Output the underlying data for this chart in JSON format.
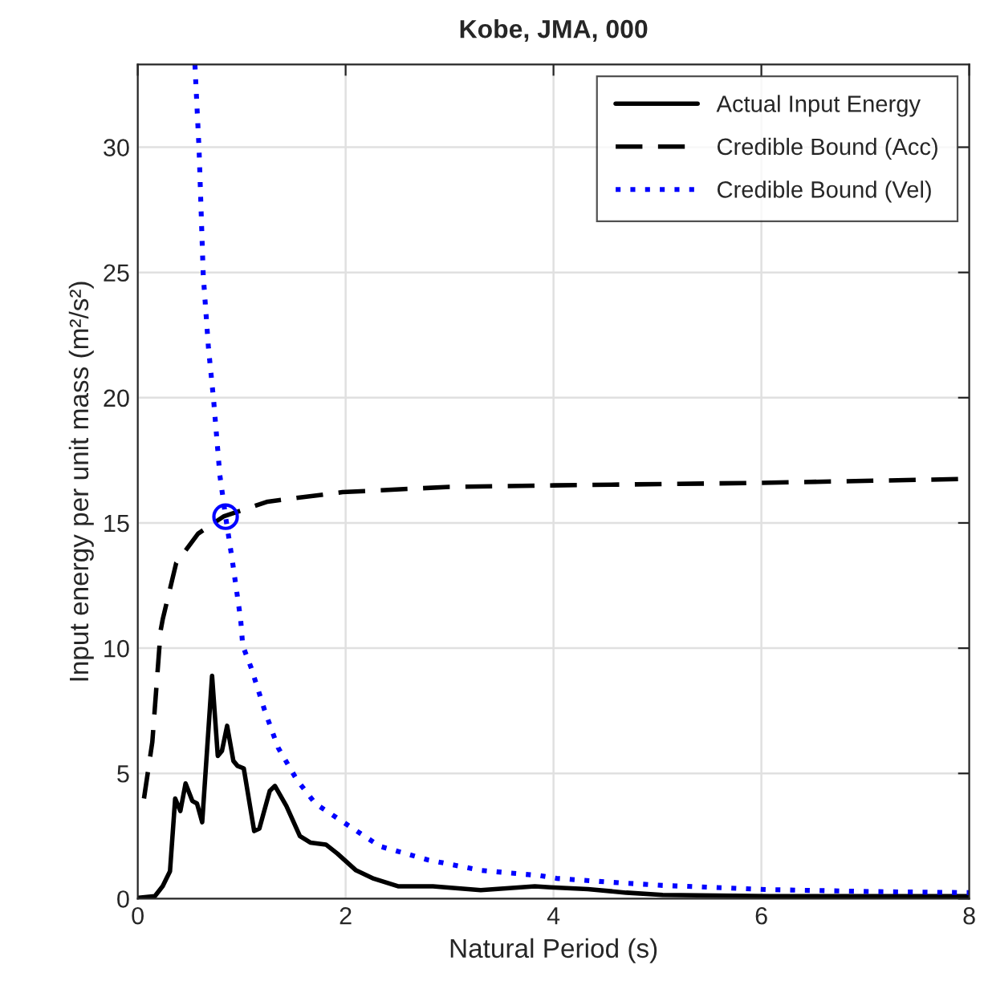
{
  "chart_data": {
    "type": "line",
    "title": "Kobe, JMA, 000",
    "xlabel": "Natural Period (s)",
    "ylabel": "Input energy per unit mass (m²/s²)",
    "xlim": [
      0,
      8
    ],
    "ylim": [
      0,
      33.3
    ],
    "xticks": [
      0,
      2,
      4,
      6,
      8
    ],
    "yticks": [
      0,
      5,
      10,
      15,
      20,
      25,
      30
    ],
    "grid": true,
    "legend": "top right",
    "series": [
      {
        "name": "Actual Input Energy",
        "color": "#000000",
        "line_style": "solid",
        "x": [
          0.01,
          0.165,
          0.24,
          0.31,
          0.36,
          0.41,
          0.46,
          0.525,
          0.57,
          0.62,
          0.715,
          0.77,
          0.81,
          0.86,
          0.92,
          0.96,
          1.02,
          1.12,
          1.17,
          1.27,
          1.32,
          1.43,
          1.56,
          1.66,
          1.81,
          1.92,
          2.1,
          2.27,
          2.51,
          2.84,
          3.3,
          3.82,
          3.97,
          4.33,
          4.7,
          5.05,
          6.08,
          8.0
        ],
        "values": [
          0.04,
          0.1,
          0.5,
          1.09,
          4.0,
          3.5,
          4.6,
          3.9,
          3.8,
          3.05,
          8.9,
          5.7,
          5.9,
          6.9,
          5.5,
          5.3,
          5.2,
          2.7,
          2.8,
          4.3,
          4.5,
          3.7,
          2.5,
          2.24,
          2.16,
          1.8,
          1.13,
          0.8,
          0.49,
          0.49,
          0.34,
          0.49,
          0.45,
          0.38,
          0.24,
          0.15,
          0.1,
          0.1
        ]
      },
      {
        "name": "Credible Bound (Acc)",
        "color": "#000000",
        "line_style": "dashed",
        "x": [
          0.06,
          0.14,
          0.22,
          0.24,
          0.37,
          0.58,
          0.83,
          1.25,
          1.97,
          3.0,
          4.0,
          6.0,
          8.0
        ],
        "values": [
          4.0,
          6.25,
          10.7,
          11.15,
          13.4,
          14.57,
          15.27,
          15.85,
          16.23,
          16.44,
          16.5,
          16.6,
          16.76
        ]
      },
      {
        "name": "Credible Bound (Vel)",
        "color": "#0000ff",
        "line_style": "dotted",
        "x": [
          0.55,
          0.59,
          0.63,
          0.68,
          0.73,
          0.79,
          0.845,
          0.91,
          0.99,
          1.01,
          1.09,
          1.22,
          1.35,
          1.53,
          1.71,
          2.02,
          2.33,
          2.79,
          3.3,
          3.87,
          4.03,
          4.54,
          5.05,
          6.08,
          7.11,
          8.0
        ],
        "values": [
          33.3,
          29.9,
          24.9,
          22.0,
          19.9,
          16.9,
          15.25,
          13.5,
          11.15,
          10.1,
          9.23,
          7.53,
          6.03,
          4.75,
          3.79,
          2.94,
          2.09,
          1.55,
          1.13,
          0.92,
          0.81,
          0.66,
          0.53,
          0.36,
          0.28,
          0.24
        ]
      },
      {
        "type": "scatter",
        "color": "#0000ff",
        "marker": "circle",
        "x": [
          0.845
        ],
        "values": [
          15.25
        ]
      }
    ]
  }
}
